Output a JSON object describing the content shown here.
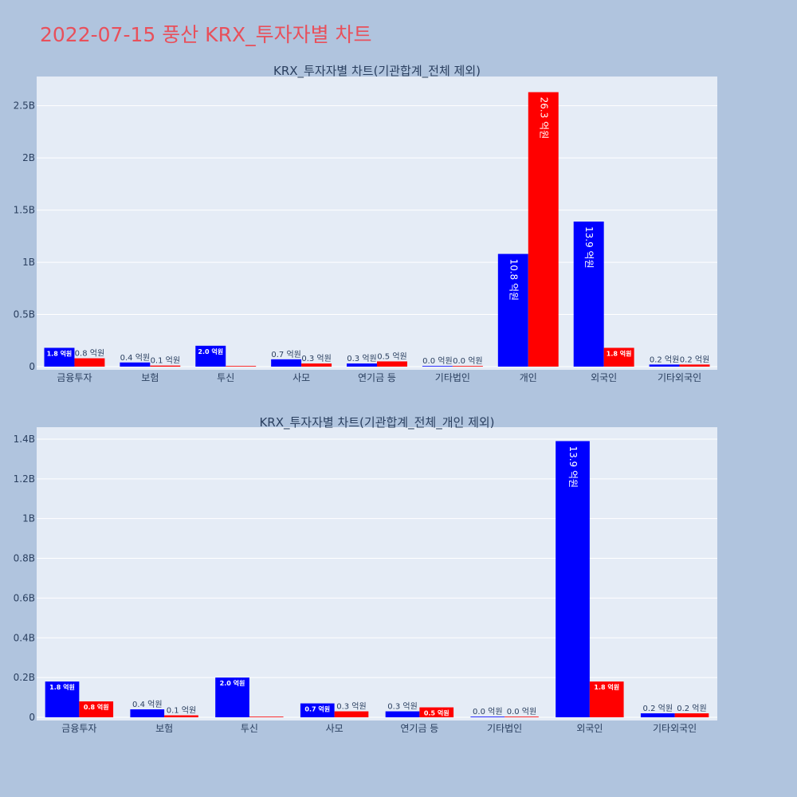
{
  "page": {
    "title": "2022-07-15 풍산 KRX_투자자별 차트",
    "title_color": "#e8505b",
    "background": "#b0c4de",
    "plot_background": "#e5ecf6"
  },
  "series_colors": [
    "#0000ff",
    "#ff0000"
  ],
  "chart_data": [
    {
      "type": "bar",
      "title": "KRX_투자자별 차트(기관합계_전체 제외)",
      "categories": [
        "금융투자",
        "보험",
        "투신",
        "사모",
        "연기금 등",
        "기타법인",
        "개인",
        "외국인",
        "기타외국인"
      ],
      "series": [
        {
          "values": [
            180000000,
            40000000,
            200000000,
            70000000,
            30000000,
            0,
            1080000000,
            1390000000,
            20000000
          ],
          "labels": [
            "1.8 억원",
            "0.4 억원",
            "2.0 억원",
            "0.7 억원",
            "0.3 억원",
            "0.0 억원",
            "10.8 억원",
            "13.9 억원",
            "0.2 억원"
          ]
        },
        {
          "values": [
            80000000,
            10000000,
            0,
            30000000,
            50000000,
            0,
            2630000000,
            180000000,
            20000000
          ],
          "labels": [
            "0.8 억원",
            "0.1 억원",
            "",
            "0.3 억원",
            "0.5 억원",
            "0.0 억원",
            "26.3 억원",
            "1.8 억원",
            "0.2 억원"
          ]
        }
      ],
      "yticks": [
        0,
        500000000,
        1000000000,
        1500000000,
        2000000000,
        2500000000
      ],
      "ytick_labels": [
        "0",
        "0.5B",
        "1B",
        "1.5B",
        "2B",
        "2.5B"
      ],
      "ylim": [
        0,
        2780000000
      ],
      "grid": true,
      "legend": false
    },
    {
      "type": "bar",
      "title": "KRX_투자자별 차트(기관합계_전체_개인 제외)",
      "categories": [
        "금융투자",
        "보험",
        "투신",
        "사모",
        "연기금 등",
        "기타법인",
        "외국인",
        "기타외국인"
      ],
      "series": [
        {
          "values": [
            180000000,
            40000000,
            200000000,
            70000000,
            30000000,
            0,
            1390000000,
            20000000
          ],
          "labels": [
            "1.8 억원",
            "0.4 억원",
            "2.0 억원",
            "0.7 억원",
            "0.3 억원",
            "0.0 억원",
            "13.9 억원",
            "0.2 억원"
          ]
        },
        {
          "values": [
            80000000,
            10000000,
            0,
            30000000,
            50000000,
            0,
            180000000,
            20000000
          ],
          "labels": [
            "0.8 억원",
            "0.1 억원",
            "",
            "0.3 억원",
            "0.5 억원",
            "0.0 억원",
            "1.8 억원",
            "0.2 억원"
          ]
        }
      ],
      "yticks": [
        0,
        200000000,
        400000000,
        600000000,
        800000000,
        1000000000,
        1200000000,
        1400000000
      ],
      "ytick_labels": [
        "0",
        "0.2B",
        "0.4B",
        "0.6B",
        "0.8B",
        "1B",
        "1.2B",
        "1.4B"
      ],
      "ylim": [
        0,
        1460000000
      ],
      "grid": true,
      "legend": false
    }
  ]
}
